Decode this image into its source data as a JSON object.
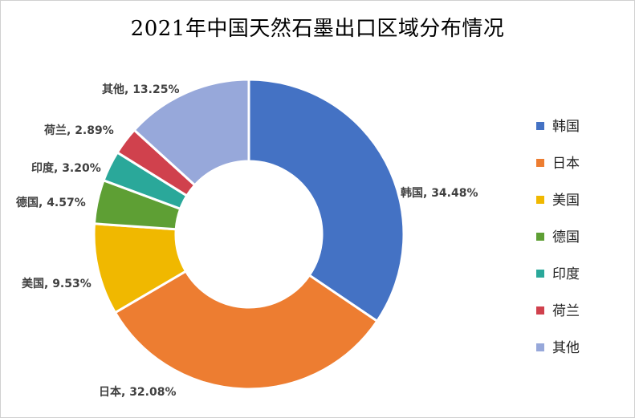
{
  "chart_data": {
    "type": "donut",
    "title": "2021年中国天然石墨出口区域分布情况",
    "categories": [
      "韩国",
      "日本",
      "美国",
      "德国",
      "印度",
      "荷兰",
      "其他"
    ],
    "values": [
      34.48,
      32.08,
      9.53,
      4.57,
      3.2,
      2.89,
      13.25
    ],
    "value_suffix": "%",
    "colors": [
      "#4472C4",
      "#ED7D31",
      "#F0B800",
      "#5E9F34",
      "#2AA89A",
      "#D0414D",
      "#97A8DA"
    ],
    "data_labels": [
      "韩国, 34.48%",
      "日本, 32.08%",
      "美国, 9.53%",
      "德国, 4.57%",
      "印度, 3.20%",
      "荷兰, 2.89%",
      "其他, 13.25%"
    ],
    "legend_position": "right",
    "start_angle": "12 o'clock",
    "direction": "clockwise"
  }
}
